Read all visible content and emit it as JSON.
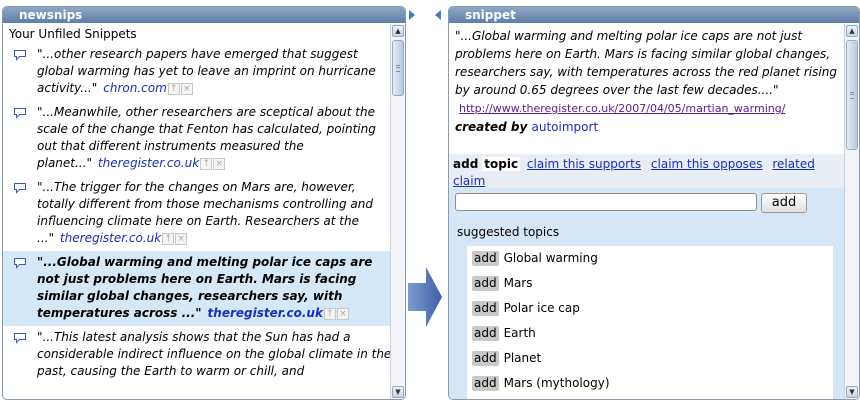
{
  "left_panel": {
    "title": "newsnips",
    "heading": "Your Unfiled Snippets",
    "snippets": [
      {
        "text": "\"...other research papers have emerged that suggest global warming has yet to leave an imprint on hurricane activity...\"",
        "source": "chron.com",
        "selected": false
      },
      {
        "text": "\"...Meanwhile, other researchers are sceptical about the scale of the change that Fenton has calculated, pointing out that different instruments measured the planet...\"",
        "source": "theregister.co.uk",
        "selected": false
      },
      {
        "text": "\"...The trigger for the changes on Mars are, however, totally different from those mechanisms controlling and influencing climate here on Earth. Researchers at the ...\"",
        "source": "theregister.co.uk",
        "selected": false
      },
      {
        "text": "\"...Global warming and melting polar ice caps are not just problems here on Earth. Mars is facing similar global changes, researchers say, with temperatures across ...\"",
        "source": "theregister.co.uk",
        "selected": true
      },
      {
        "text": "\"...This latest analysis shows that the Sun has had a considerable indirect influence on the global climate in the past, causing the Earth to warm or chill, and",
        "source": "",
        "selected": false
      }
    ],
    "up_icon": "↑",
    "close_icon": "×"
  },
  "right_panel": {
    "title": "snippet",
    "snippet_text": "\"...Global warming and melting polar ice caps are not just problems here on Earth. Mars is facing similar global changes, researchers say, with temperatures across the red planet rising by around 0.65 degrees over the last few decades....\"",
    "url": "http://www.theregister.co.uk/2007/04/05/martian_warming/",
    "created_by_label": "created by",
    "created_by_user": "autoimport",
    "tabs": [
      "add",
      "topic",
      "claim this supports",
      "claim this opposes",
      "related claim"
    ],
    "input_value": "",
    "add_button": "add",
    "suggested_label": "suggested topics",
    "add_tag": "add",
    "topics": [
      "Global warming",
      "Mars",
      "Polar ice cap",
      "Earth",
      "Planet",
      "Mars (mythology)"
    ]
  },
  "colors": {
    "title_bar": "#6f8db3",
    "selected_row": "#d5e8f8",
    "link": "#1a2fb3",
    "arrow": "#4a6cb3"
  }
}
